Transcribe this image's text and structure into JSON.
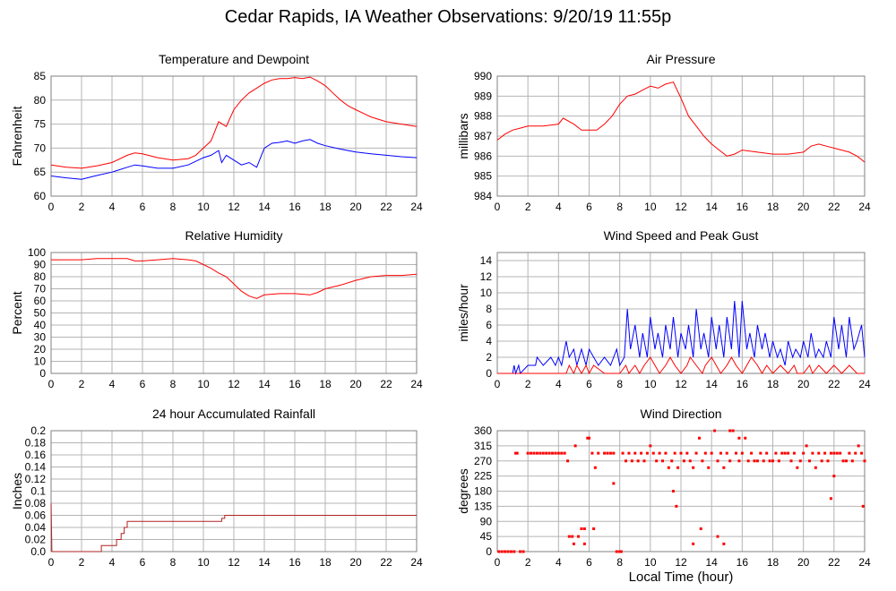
{
  "title": "Cedar Rapids, IA Weather Observations: 9/20/19 11:55p",
  "xlabel": "Local Time (hour)",
  "colors": {
    "red": "#ff0000",
    "blue": "#0000ff",
    "darkred": "#b22222",
    "grid": "#b4b4b4"
  },
  "chart_data": [
    {
      "id": "temp",
      "type": "line",
      "title": "Temperature and Dewpoint",
      "ylabel": "Fahrenheit",
      "xlim": [
        0,
        24
      ],
      "ylim": [
        60,
        85
      ],
      "xticks": [
        0,
        2,
        4,
        6,
        8,
        10,
        12,
        14,
        16,
        18,
        20,
        22,
        24
      ],
      "yticks": [
        60,
        65,
        70,
        75,
        80,
        85
      ],
      "grid": true,
      "series": [
        {
          "color": "#ff0000",
          "x": [
            0,
            1,
            2,
            3,
            4,
            5,
            5.5,
            6,
            7,
            8,
            9,
            9.5,
            10,
            10.5,
            11,
            11.5,
            12,
            12.5,
            13,
            13.5,
            14,
            14.5,
            15,
            15.5,
            16,
            16.5,
            17,
            17.5,
            18,
            18.5,
            19,
            19.5,
            20,
            21,
            22,
            23,
            24
          ],
          "y": [
            66.5,
            66,
            65.8,
            66.3,
            67,
            68.5,
            69,
            68.8,
            68,
            67.5,
            67.8,
            68.5,
            70,
            71.5,
            75.5,
            74.5,
            78,
            80,
            81.5,
            82.5,
            83.5,
            84.2,
            84.5,
            84.5,
            84.7,
            84.5,
            84.8,
            84,
            83,
            81.5,
            80,
            78.8,
            78,
            76.5,
            75.5,
            75,
            74.5
          ]
        },
        {
          "color": "#0000ff",
          "x": [
            0,
            1,
            2,
            3,
            4,
            5,
            5.5,
            6,
            7,
            8,
            9,
            10,
            10.5,
            11,
            11.2,
            11.5,
            12,
            12.5,
            13,
            13.5,
            14,
            14.5,
            15,
            15.5,
            16,
            16.5,
            17,
            17.5,
            18,
            19,
            20,
            21,
            22,
            23,
            24
          ],
          "y": [
            64.2,
            63.8,
            63.5,
            64.3,
            65,
            66,
            66.5,
            66.3,
            65.8,
            65.8,
            66.5,
            68,
            68.5,
            69.5,
            67,
            68.5,
            67.5,
            66.5,
            67,
            66,
            70,
            71,
            71.2,
            71.5,
            71,
            71.5,
            71.8,
            71,
            70.5,
            69.8,
            69.2,
            68.8,
            68.5,
            68.2,
            68
          ]
        }
      ]
    },
    {
      "id": "pressure",
      "type": "line",
      "title": "Air Pressure",
      "ylabel": "millibars",
      "xlim": [
        0,
        24
      ],
      "ylim": [
        984,
        990
      ],
      "xticks": [
        0,
        2,
        4,
        6,
        8,
        10,
        12,
        14,
        16,
        18,
        20,
        22,
        24
      ],
      "yticks": [
        984,
        985,
        986,
        987,
        988,
        989,
        990
      ],
      "grid": true,
      "series": [
        {
          "color": "#ff0000",
          "x": [
            0,
            0.5,
            1,
            1.5,
            2,
            3,
            4,
            4.3,
            5,
            5.5,
            6,
            6.5,
            7,
            7.5,
            8,
            8.5,
            9,
            9.5,
            10,
            10.5,
            11,
            11.5,
            12,
            12.5,
            13,
            13.5,
            14,
            14.5,
            15,
            15.5,
            16,
            17,
            18,
            19,
            20,
            20.5,
            21,
            21.5,
            22,
            22.5,
            23,
            23.5,
            24
          ],
          "y": [
            986.8,
            987.1,
            987.3,
            987.4,
            987.5,
            987.5,
            987.6,
            987.9,
            987.6,
            987.3,
            987.3,
            987.3,
            987.6,
            988,
            988.6,
            989,
            989.1,
            989.3,
            989.5,
            989.4,
            989.6,
            989.7,
            988.9,
            988,
            987.5,
            987,
            986.6,
            986.3,
            986,
            986.1,
            986.3,
            986.2,
            986.1,
            986.1,
            986.2,
            986.5,
            986.6,
            986.5,
            986.4,
            986.3,
            986.2,
            986,
            985.7
          ]
        }
      ]
    },
    {
      "id": "humidity",
      "type": "line",
      "title": "Relative Humidity",
      "ylabel": "Percent",
      "xlim": [
        0,
        24
      ],
      "ylim": [
        0,
        100
      ],
      "xticks": [
        0,
        2,
        4,
        6,
        8,
        10,
        12,
        14,
        16,
        18,
        20,
        22,
        24
      ],
      "yticks": [
        0,
        10,
        20,
        30,
        40,
        50,
        60,
        70,
        80,
        90,
        100
      ],
      "grid": true,
      "series": [
        {
          "color": "#ff0000",
          "x": [
            0,
            1,
            2,
            3,
            4,
            5,
            5.5,
            6,
            7,
            8,
            9,
            9.5,
            10,
            10.5,
            11,
            11.5,
            12,
            12.5,
            13,
            13.5,
            14,
            15,
            16,
            17,
            17.5,
            18,
            19,
            20,
            21,
            22,
            23,
            24
          ],
          "y": [
            94,
            94,
            94,
            95,
            95,
            95,
            93,
            93,
            94,
            95,
            94,
            93,
            90,
            87,
            83,
            80,
            74,
            68,
            64,
            62,
            65,
            66,
            66,
            65,
            67,
            70,
            73,
            77,
            80,
            81,
            81,
            82
          ]
        }
      ]
    },
    {
      "id": "wind",
      "type": "line",
      "title": "Wind Speed and Peak Gust",
      "ylabel": "miles/hour",
      "xlim": [
        0,
        24
      ],
      "ylim": [
        0,
        15
      ],
      "xticks": [
        0,
        2,
        4,
        6,
        8,
        10,
        12,
        14,
        16,
        18,
        20,
        22,
        24
      ],
      "yticks": [
        0,
        2,
        4,
        6,
        8,
        10,
        12,
        14
      ],
      "grid": true,
      "series": [
        {
          "color": "#0000ff",
          "x": [
            0,
            1,
            1.1,
            1.2,
            1.4,
            1.5,
            2,
            2.5,
            2.6,
            3,
            3.5,
            3.8,
            4,
            4.2,
            4.5,
            4.7,
            5,
            5.2,
            5.5,
            5.8,
            6,
            6.3,
            6.6,
            7,
            7.4,
            7.8,
            8,
            8.3,
            8.5,
            8.7,
            9,
            9.3,
            9.5,
            9.8,
            10,
            10.3,
            10.5,
            10.8,
            11,
            11.3,
            11.5,
            11.8,
            12,
            12.3,
            12.5,
            12.8,
            13,
            13.3,
            13.5,
            13.8,
            14,
            14.3,
            14.5,
            14.8,
            15,
            15.3,
            15.5,
            15.8,
            16,
            16.3,
            16.5,
            16.8,
            17,
            17.3,
            17.5,
            17.8,
            18,
            18.3,
            18.5,
            18.8,
            19,
            19.3,
            19.5,
            19.8,
            20,
            20.3,
            20.5,
            20.8,
            21,
            21.3,
            21.5,
            21.8,
            22,
            22.3,
            22.5,
            22.8,
            23,
            23.3,
            23.5,
            23.8,
            24
          ],
          "y": [
            0,
            0,
            1,
            0,
            1,
            0,
            1,
            1,
            2,
            1,
            2,
            1,
            2,
            1,
            4,
            2,
            3,
            1,
            3,
            1,
            3,
            2,
            1,
            2,
            1,
            3,
            1,
            2,
            8,
            3,
            6,
            2,
            5,
            2,
            7,
            3,
            5,
            2,
            6,
            3,
            7,
            2,
            5,
            3,
            6,
            2,
            8,
            3,
            5,
            2,
            7,
            3,
            6,
            2,
            7,
            3,
            9,
            2,
            9,
            3,
            5,
            2,
            6,
            3,
            5,
            2,
            4,
            2,
            3,
            1,
            4,
            2,
            3,
            2,
            4,
            2,
            5,
            2,
            3,
            2,
            4,
            2,
            7,
            3,
            6,
            2,
            7,
            3,
            4,
            6,
            2
          ]
        },
        {
          "color": "#ff0000",
          "x": [
            0,
            4.5,
            4.7,
            5,
            5.2,
            5.5,
            5.8,
            6,
            6.3,
            7,
            8,
            8.4,
            8.6,
            9,
            9.3,
            9.6,
            10,
            10.3,
            10.6,
            11,
            11.3,
            11.6,
            12,
            12.4,
            12.6,
            13,
            13.4,
            13.6,
            14,
            14.3,
            14.6,
            15,
            15.3,
            15.6,
            16,
            16.3,
            16.6,
            17,
            17.3,
            17.6,
            18,
            18.5,
            19,
            19.4,
            19.6,
            20,
            20.4,
            20.6,
            21,
            21.5,
            22,
            22.5,
            23,
            23.5,
            24
          ],
          "y": [
            0,
            0,
            1,
            0,
            1,
            0,
            1,
            0,
            1,
            0,
            0,
            1,
            0,
            1,
            0,
            1,
            2,
            1,
            0,
            1,
            2,
            1,
            0,
            1,
            2,
            1,
            0,
            1,
            2,
            1,
            0,
            1,
            2,
            1,
            0,
            1,
            2,
            1,
            0,
            1,
            0,
            1,
            0,
            1,
            0,
            0,
            1,
            0,
            1,
            0,
            1,
            0,
            1,
            0,
            0
          ]
        }
      ]
    },
    {
      "id": "rain",
      "type": "line",
      "title": "24 hour Accumulated Rainfall",
      "ylabel": "Inches",
      "xlim": [
        0,
        24
      ],
      "ylim": [
        0,
        0.2
      ],
      "xticks": [
        0,
        2,
        4,
        6,
        8,
        10,
        12,
        14,
        16,
        18,
        20,
        22,
        24
      ],
      "yticks": [
        "0.0",
        "0.02",
        "0.04",
        "0.06",
        "0.08",
        "0.1",
        "0.12",
        "0.14",
        "0.16",
        "0.18",
        "0.2"
      ],
      "grid": true,
      "series": [
        {
          "color": "#b22222",
          "step": true,
          "x": [
            0,
            0.05,
            3.3,
            3.3,
            4.3,
            4.3,
            4.6,
            4.6,
            4.8,
            4.8,
            5.0,
            5.0,
            11.2,
            11.2,
            11.4,
            11.4,
            24
          ],
          "y": [
            0.08,
            0,
            0,
            0.01,
            0.01,
            0.02,
            0.02,
            0.03,
            0.03,
            0.04,
            0.04,
            0.05,
            0.05,
            0.055,
            0.055,
            0.06,
            0.06
          ]
        }
      ]
    },
    {
      "id": "direction",
      "type": "scatter",
      "title": "Wind Direction",
      "ylabel": "degrees",
      "xlim": [
        0,
        24
      ],
      "ylim": [
        0,
        360
      ],
      "xticks": [
        0,
        2,
        4,
        6,
        8,
        10,
        12,
        14,
        16,
        18,
        20,
        22,
        24
      ],
      "yticks": [
        0,
        45,
        90,
        135,
        180,
        225,
        270,
        315,
        360
      ],
      "grid": true,
      "series": [
        {
          "color": "#ff0000",
          "x": [
            0.1,
            0.3,
            0.5,
            0.7,
            0.9,
            1.1,
            1.5,
            1.7,
            1.2,
            1.3,
            2.0,
            2.2,
            2.4,
            2.6,
            2.8,
            3.0,
            3.2,
            3.4,
            3.6,
            3.8,
            4.0,
            4.2,
            4.4,
            4.6,
            4.7,
            4.9,
            5.1,
            5.3,
            5.5,
            5.7,
            5.9,
            6.0,
            6.2,
            6.4,
            6.6,
            7.0,
            7.2,
            7.4,
            7.6,
            7.8,
            8.0,
            8.2,
            8.4,
            8.6,
            8.8,
            9.0,
            9.2,
            9.4,
            9.6,
            9.8,
            10.0,
            10.2,
            10.4,
            10.6,
            10.8,
            11.0,
            11.2,
            11.4,
            11.6,
            11.8,
            12.0,
            12.2,
            12.4,
            12.6,
            12.8,
            13.0,
            13.2,
            13.4,
            13.6,
            13.8,
            14.0,
            14.2,
            14.4,
            14.6,
            14.8,
            15.0,
            15.2,
            15.4,
            15.6,
            15.8,
            16.0,
            16.2,
            16.4,
            16.6,
            16.8,
            17.0,
            17.2,
            17.4,
            17.6,
            17.8,
            18.0,
            18.2,
            18.4,
            18.6,
            18.8,
            19.0,
            19.2,
            19.4,
            19.6,
            19.8,
            20.0,
            20.2,
            20.4,
            20.6,
            20.8,
            21.0,
            21.2,
            21.4,
            21.6,
            21.8,
            22.0,
            22.2,
            22.4,
            22.6,
            22.8,
            23.0,
            23.2,
            23.4,
            23.6,
            23.8,
            24.0,
            5.0,
            5.7,
            6.3,
            7.6,
            8.1,
            11.5,
            11.7,
            12.8,
            13.3,
            14.4,
            14.8,
            15.2,
            15.8,
            21.8,
            22.0,
            23.9
          ],
          "y": [
            0,
            0,
            0,
            0,
            0,
            0,
            0,
            0,
            293,
            293,
            293,
            293,
            293,
            293,
            293,
            293,
            293,
            293,
            293,
            293,
            293,
            293,
            293,
            270,
            45,
            45,
            315,
            45,
            68,
            68,
            338,
            338,
            293,
            250,
            293,
            293,
            293,
            293,
            293,
            0,
            0,
            293,
            270,
            293,
            270,
            293,
            270,
            293,
            270,
            293,
            315,
            293,
            270,
            293,
            270,
            293,
            250,
            270,
            293,
            250,
            293,
            270,
            293,
            270,
            250,
            293,
            338,
            270,
            293,
            250,
            293,
            360,
            270,
            293,
            250,
            293,
            270,
            360,
            293,
            270,
            293,
            338,
            270,
            293,
            270,
            270,
            293,
            270,
            293,
            270,
            270,
            293,
            270,
            293,
            293,
            293,
            270,
            293,
            250,
            270,
            293,
            315,
            270,
            293,
            250,
            293,
            270,
            293,
            270,
            293,
            293,
            293,
            293,
            270,
            270,
            293,
            270,
            293,
            315,
            293,
            270,
            23,
            23,
            68,
            203,
            0,
            180,
            135,
            23,
            68,
            45,
            23,
            360,
            338,
            158,
            225,
            135
          ]
        }
      ]
    }
  ]
}
